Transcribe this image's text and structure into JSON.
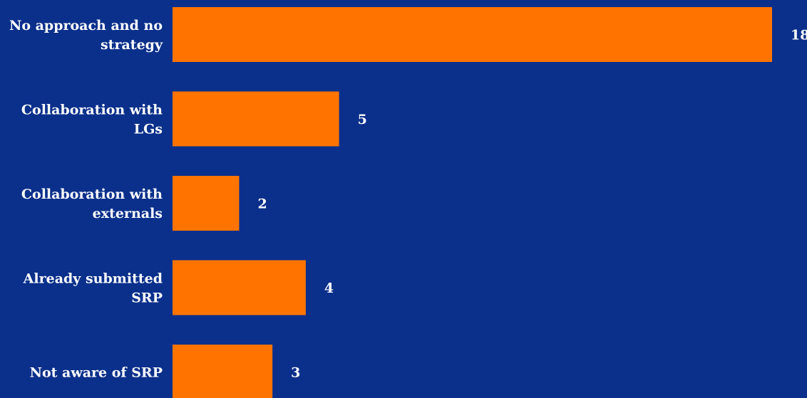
{
  "chart_data": {
    "type": "bar",
    "orientation": "horizontal",
    "categories": [
      [
        "No approach and no",
        "strategy"
      ],
      [
        "Collaboration with",
        "LGs"
      ],
      [
        "Collaboration with",
        "externals"
      ],
      [
        "Already submitted",
        "SRP"
      ],
      [
        "Not aware of SRP"
      ]
    ],
    "values": [
      18,
      5,
      2,
      4,
      3
    ],
    "data_labels": [
      "18",
      "5",
      "2",
      "4",
      "3"
    ],
    "xlim": [
      0,
      18
    ],
    "grid": false,
    "legend": "none",
    "colors": {
      "background": "#0b308b",
      "bar": "#ff7400",
      "text": "#ffffff"
    }
  }
}
